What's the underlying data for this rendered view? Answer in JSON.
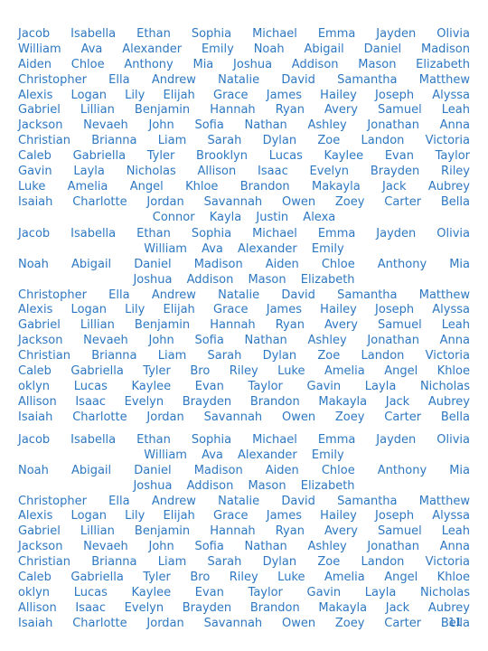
{
  "page": {
    "page_number": "11",
    "blocks": [
      {
        "lines": [
          "Jacob Isabella Ethan Sophia Michael Emma Jayden Olivia",
          "William Ava Alexander Emily Noah Abigail Daniel Madison",
          "Aiden Chloe Anthony Mia Joshua Addison Mason Elizabeth",
          "Christopher Ella Andrew Natalie David Samantha Matthew",
          "Alexis Logan Lily Elijah Grace James Hailey Joseph Alyssa",
          "Gabriel Lillian Benjamin Hannah Ryan Avery Samuel Leah",
          "Jackson Nevaeh John Sofia Nathan Ashley Jonathan Anna",
          "Christian Brianna Liam Sarah Dylan Zoe Landon Victoria",
          "Caleb Gabriella Tyler Brooklyn Lucas Kaylee Evan Taylor",
          "Gavin Layla Nicholas Allison Isaac Evelyn Brayden Riley",
          "Luke Amelia Angel Khloe Brandon Makayla Jack Aubrey",
          "Isaiah Charlotte Jordan Savannah Owen Zoey Carter Bella",
          "Connor Kayla Justin Alexa"
        ]
      },
      {
        "lines": [
          "Jacob Isabella Ethan Sophia Michael Emma Jayden Olivia",
          "William Ava Alexander Emily",
          "Noah Abigail Daniel Madison Aiden Chloe Anthony Mia",
          "Joshua Addison Mason Elizabeth",
          "Christopher Ella Andrew Natalie David Samantha Matthew",
          "Alexis Logan Lily Elijah Grace James Hailey Joseph Alyssa",
          "Gabriel Lillian Benjamin Hannah Ryan Avery Samuel Leah",
          "Jackson Nevaeh John Sofia Nathan Ashley Jonathan Anna",
          "Christian Brianna Liam Sarah Dylan Zoe Landon Victoria",
          "Caleb Gabriella Tyler Bro Riley Luke Amelia Angel Khloe",
          "oklyn Lucas Kaylee Evan Taylor Gavin Layla Nicholas",
          "Allison Isaac Evelyn Brayden Brandon Makayla Jack Aubrey",
          "Isaiah Charlotte Jordan Savannah Owen Zoey Carter Bella"
        ]
      },
      {
        "lines": [
          "Jacob Isabella Ethan Sophia Michael Emma Jayden Olivia",
          "William Ava Alexander Emily",
          "Noah Abigail Daniel Madison Aiden Chloe Anthony Mia",
          "Joshua Addison Mason Elizabeth",
          "Christopher Ella Andrew Natalie David Samantha Matthew",
          "Alexis Logan Lily Elijah Grace James Hailey Joseph Alyssa",
          "Gabriel Lillian Benjamin Hannah Ryan Avery Samuel Leah",
          "Jackson Nevaeh John Sofia Nathan Ashley Jonathan Anna",
          "Christian Brianna Liam Sarah Dylan Zoe Landon Victoria",
          "Caleb Gabriella Tyler Bro Riley Luke Amelia Angel Khloe",
          "oklyn Lucas Kaylee Evan Taylor Gavin Layla Nicholas",
          "Allison Isaac Evelyn Brayden Brandon Makayla Jack Aubrey",
          "Isaiah Charlotte Jordan Savannah Owen Zoey Carter Bella"
        ]
      }
    ]
  },
  "colors": {
    "text": "#2e78c2",
    "background": "#ffffff"
  }
}
